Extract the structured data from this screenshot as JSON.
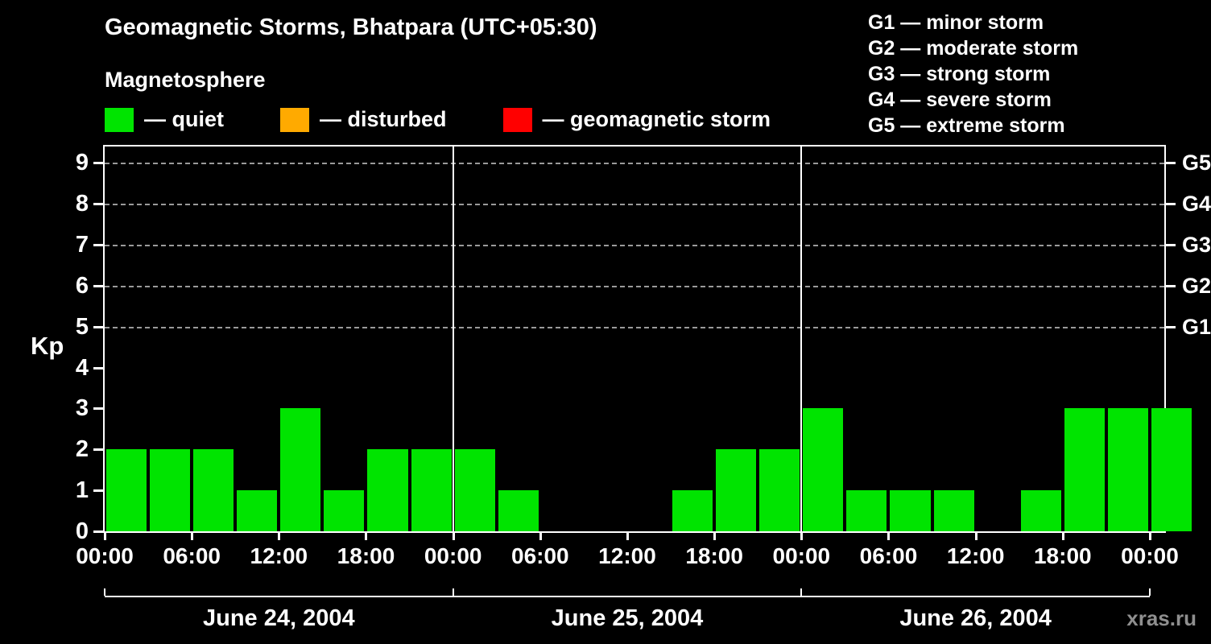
{
  "colors": {
    "background": "#000000",
    "text": "#ffffff",
    "quiet": "#00e400",
    "disturbed": "#ffaa00",
    "storm": "#ff0000",
    "gridline": "#9a9a9a",
    "watermark": "#8f8f8f"
  },
  "header": {
    "title": "Geomagnetic Storms, Bhatpara (UTC+05:30)",
    "subtitle": "Magnetosphere",
    "legend": [
      {
        "swatch": "quiet",
        "label": "— quiet"
      },
      {
        "swatch": "disturbed",
        "label": "— disturbed"
      },
      {
        "swatch": "storm",
        "label": "— geomagnetic storm"
      }
    ]
  },
  "storm_scale_legend": [
    "G1 — minor storm",
    "G2 — moderate storm",
    "G3 — strong storm",
    "G4 — severe storm",
    "G5 — extreme storm"
  ],
  "watermark": "xras.ru",
  "chart_data": {
    "type": "bar",
    "title": "Geomagnetic Storms, Bhatpara (UTC+05:30)",
    "ylabel": "Kp",
    "ylim": [
      0,
      9.4
    ],
    "y_ticks": [
      0,
      1,
      2,
      3,
      4,
      5,
      6,
      7,
      8,
      9
    ],
    "right_axis_labels": [
      {
        "kp": 5,
        "label": "G1"
      },
      {
        "kp": 6,
        "label": "G2"
      },
      {
        "kp": 7,
        "label": "G3"
      },
      {
        "kp": 8,
        "label": "G4"
      },
      {
        "kp": 9,
        "label": "G5"
      }
    ],
    "x_tick_labels": [
      "00:00",
      "06:00",
      "12:00",
      "18:00",
      "00:00",
      "06:00",
      "12:00",
      "18:00",
      "00:00",
      "06:00",
      "12:00",
      "18:00",
      "00:00"
    ],
    "bar_interval_hours": 3,
    "days": [
      {
        "date": "June 24, 2004",
        "kp": [
          2,
          2,
          2,
          1,
          3,
          1,
          2,
          2
        ]
      },
      {
        "date": "June 25, 2004",
        "kp": [
          2,
          1,
          0,
          0,
          0,
          1,
          2,
          2
        ]
      },
      {
        "date": "June 26, 2004",
        "kp": [
          3,
          1,
          1,
          1,
          0,
          1,
          3,
          3
        ]
      }
    ],
    "partial_next_bar_kp": 3,
    "grid": "dashed horizontal lines at G1-G5 levels",
    "legend_position": "top"
  }
}
